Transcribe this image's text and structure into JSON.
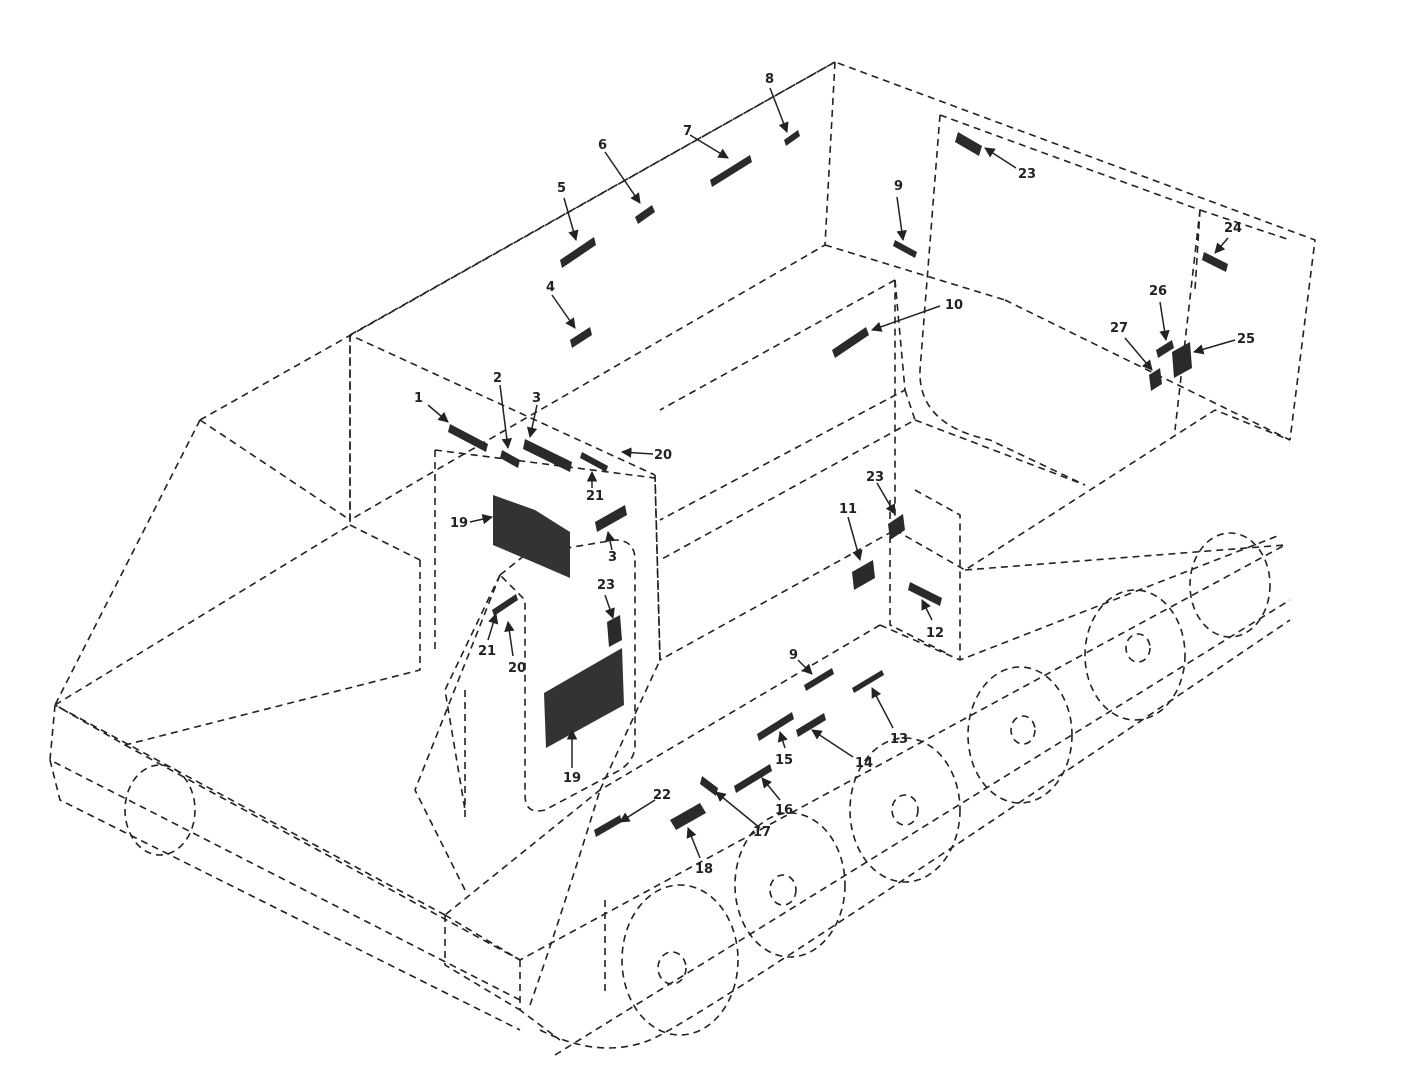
{
  "diagram": {
    "callouts": [
      {
        "id": "c1",
        "label": "1"
      },
      {
        "id": "c2",
        "label": "2"
      },
      {
        "id": "c3a",
        "label": "3"
      },
      {
        "id": "c3b",
        "label": "3"
      },
      {
        "id": "c4",
        "label": "4"
      },
      {
        "id": "c5",
        "label": "5"
      },
      {
        "id": "c6",
        "label": "6"
      },
      {
        "id": "c7",
        "label": "7"
      },
      {
        "id": "c8",
        "label": "8"
      },
      {
        "id": "c9a",
        "label": "9"
      },
      {
        "id": "c9b",
        "label": "9"
      },
      {
        "id": "c10",
        "label": "10"
      },
      {
        "id": "c11",
        "label": "11"
      },
      {
        "id": "c12",
        "label": "12"
      },
      {
        "id": "c13",
        "label": "13"
      },
      {
        "id": "c14",
        "label": "14"
      },
      {
        "id": "c15",
        "label": "15"
      },
      {
        "id": "c16",
        "label": "16"
      },
      {
        "id": "c17",
        "label": "17"
      },
      {
        "id": "c18",
        "label": "18"
      },
      {
        "id": "c19a",
        "label": "19"
      },
      {
        "id": "c19b",
        "label": "19"
      },
      {
        "id": "c20a",
        "label": "20"
      },
      {
        "id": "c20b",
        "label": "20"
      },
      {
        "id": "c21a",
        "label": "21"
      },
      {
        "id": "c21b",
        "label": "21"
      },
      {
        "id": "c22",
        "label": "22"
      },
      {
        "id": "c23a",
        "label": "23"
      },
      {
        "id": "c23b",
        "label": "23"
      },
      {
        "id": "c23c",
        "label": "23"
      },
      {
        "id": "c24",
        "label": "24"
      },
      {
        "id": "c25",
        "label": "25"
      },
      {
        "id": "c26",
        "label": "26"
      },
      {
        "id": "c27",
        "label": "27"
      }
    ]
  }
}
